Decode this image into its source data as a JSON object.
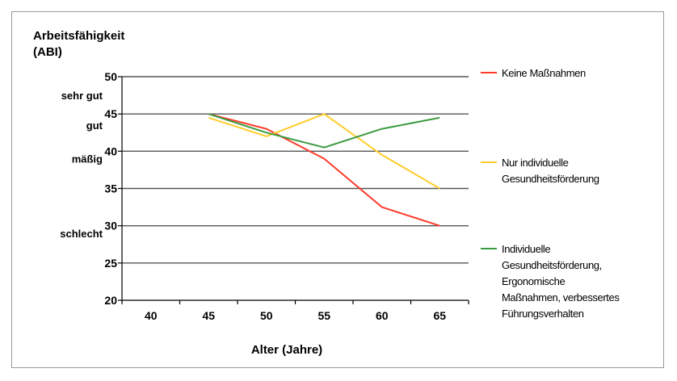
{
  "chart_data": {
    "type": "line",
    "title": "",
    "ylabel": [
      "Arbeitsfähigkeit",
      "(ABI)"
    ],
    "xlabel": "Alter (Jahre)",
    "x": [
      40,
      45,
      50,
      55,
      60,
      65
    ],
    "ylim": [
      20,
      50
    ],
    "yticks": [
      20,
      25,
      30,
      35,
      40,
      45,
      50
    ],
    "grid": true,
    "legend_position": "right",
    "categories": [
      {
        "label": "sehr gut",
        "y": 47.5
      },
      {
        "label": "gut",
        "y": 43.5
      },
      {
        "label": "mäßig",
        "y": 39
      },
      {
        "label": "schlecht",
        "y": 29
      }
    ],
    "series": [
      {
        "name": "Keine Maßnahmen",
        "legend_lines": [
          "Keine Maßnahmen"
        ],
        "color": "#ff3b2b",
        "values": [
          null,
          45,
          43,
          39,
          32.5,
          30
        ]
      },
      {
        "name": "Nur individuelle Gesundheitsförderung",
        "legend_lines": [
          "Nur individuelle",
          "Gesundheitsförderung"
        ],
        "color": "#ffcc2a",
        "values": [
          null,
          44.5,
          42,
          45,
          39.5,
          35
        ]
      },
      {
        "name": "Individuelle Gesundheitsförderung, Ergonomische Maßnahmen, verbessertes Führungsverhalten",
        "legend_lines": [
          "Individuelle",
          "Gesundheitsförderung,",
          "Ergonomische",
          "Maßnahmen, verbessertes",
          "Führungsverhalten"
        ],
        "color": "#3a9a40",
        "values": [
          null,
          45,
          42.5,
          40.5,
          43,
          44.5
        ]
      }
    ]
  }
}
